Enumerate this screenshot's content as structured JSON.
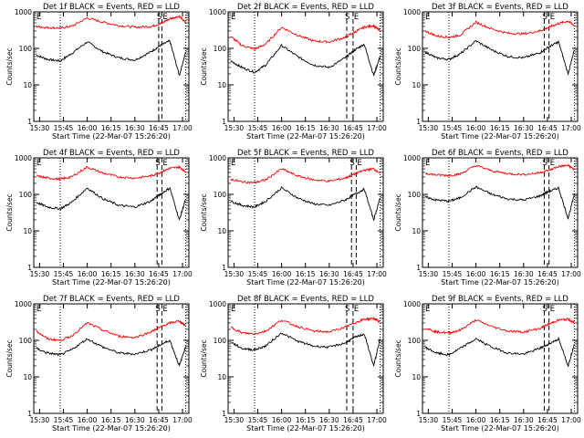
{
  "ylabel": "Counts/sec",
  "xlabel": "Start Time (22-Mar-07 15:26:20)",
  "x_ticks": [
    "15:30",
    "15:45",
    "16:00",
    "16:15",
    "16:30",
    "16:45",
    "17:00"
  ],
  "y_ticks": [
    "1",
    "10",
    "100",
    "1000"
  ],
  "markers": [
    "E",
    "S",
    "E"
  ],
  "colors": {
    "events": "#000000",
    "lld": "#ff0000",
    "axis": "#000000"
  },
  "chart_data": [
    {
      "type": "line",
      "title": "Det 1f BLACK = Events, RED = LLD",
      "yscale": "log",
      "ylim": [
        1,
        1000
      ],
      "xlim": [
        "15:26:20",
        "17:04"
      ],
      "series": [
        {
          "name": "Events",
          "x": [
            "15:28",
            "15:35",
            "15:43",
            "15:50",
            "16:00",
            "16:10",
            "16:20",
            "16:30",
            "16:40",
            "16:46",
            "16:52",
            "16:58",
            "17:02"
          ],
          "values": [
            65,
            50,
            45,
            72,
            150,
            80,
            55,
            48,
            80,
            120,
            160,
            18,
            80
          ]
        },
        {
          "name": "LLD",
          "x": [
            "15:28",
            "15:35",
            "15:43",
            "15:50",
            "16:00",
            "16:10",
            "16:20",
            "16:30",
            "16:40",
            "16:46",
            "16:52",
            "16:58",
            "17:02"
          ],
          "values": [
            400,
            370,
            360,
            400,
            680,
            520,
            420,
            380,
            400,
            470,
            650,
            760,
            500
          ]
        }
      ],
      "vlines_dotted": [
        "15:43",
        "17:02"
      ],
      "vlines_dashed": [
        "16:45",
        "16:47"
      ]
    },
    {
      "type": "line",
      "title": "Det 2f BLACK = Events, RED = LLD",
      "yscale": "log",
      "ylim": [
        1,
        1000
      ],
      "xlim": [
        "15:26:20",
        "17:04"
      ],
      "series": [
        {
          "name": "Events",
          "x": [
            "15:28",
            "15:35",
            "15:43",
            "15:50",
            "16:00",
            "16:10",
            "16:20",
            "16:30",
            "16:40",
            "16:46",
            "16:52",
            "16:58",
            "17:02"
          ],
          "values": [
            45,
            30,
            22,
            35,
            120,
            60,
            35,
            30,
            55,
            90,
            130,
            18,
            60
          ]
        },
        {
          "name": "LLD",
          "x": [
            "15:28",
            "15:35",
            "15:43",
            "15:50",
            "16:00",
            "16:10",
            "16:20",
            "16:30",
            "16:40",
            "16:46",
            "16:52",
            "16:58",
            "17:02"
          ],
          "values": [
            210,
            120,
            95,
            130,
            380,
            230,
            160,
            150,
            200,
            280,
            380,
            420,
            300
          ]
        }
      ],
      "vlines_dotted": [
        "15:43",
        "17:02"
      ],
      "vlines_dashed": [
        "16:41",
        "16:45"
      ]
    },
    {
      "type": "line",
      "title": "Det 3f BLACK = Events, RED = LLD",
      "yscale": "log",
      "ylim": [
        1,
        1000
      ],
      "xlim": [
        "15:26:20",
        "17:04"
      ],
      "series": [
        {
          "name": "Events",
          "x": [
            "15:28",
            "15:35",
            "15:43",
            "15:50",
            "16:00",
            "16:10",
            "16:20",
            "16:30",
            "16:40",
            "16:46",
            "16:52",
            "16:58",
            "17:02"
          ],
          "values": [
            80,
            55,
            50,
            70,
            160,
            90,
            60,
            55,
            75,
            110,
            150,
            20,
            90
          ]
        },
        {
          "name": "LLD",
          "x": [
            "15:28",
            "15:35",
            "15:43",
            "15:50",
            "16:00",
            "16:10",
            "16:20",
            "16:30",
            "16:40",
            "16:46",
            "16:52",
            "16:58",
            "17:02"
          ],
          "values": [
            300,
            220,
            200,
            230,
            520,
            340,
            260,
            250,
            300,
            380,
            480,
            560,
            420
          ]
        }
      ],
      "vlines_dotted": [
        "15:43",
        "17:02"
      ],
      "vlines_dashed": [
        "16:43",
        "16:46"
      ]
    },
    {
      "type": "line",
      "title": "Det 4f BLACK = Events, RED = LLD",
      "yscale": "log",
      "ylim": [
        1,
        1000
      ],
      "xlim": [
        "15:26:20",
        "17:04"
      ],
      "series": [
        {
          "name": "Events",
          "x": [
            "15:28",
            "15:35",
            "15:43",
            "15:50",
            "16:00",
            "16:10",
            "16:20",
            "16:30",
            "16:40",
            "16:46",
            "16:52",
            "16:58",
            "17:02"
          ],
          "values": [
            60,
            45,
            40,
            60,
            150,
            75,
            50,
            45,
            65,
            100,
            150,
            20,
            75
          ]
        },
        {
          "name": "LLD",
          "x": [
            "15:28",
            "15:35",
            "15:43",
            "15:50",
            "16:00",
            "16:10",
            "16:20",
            "16:30",
            "16:40",
            "16:46",
            "16:52",
            "16:58",
            "17:02"
          ],
          "values": [
            320,
            280,
            260,
            300,
            560,
            380,
            300,
            280,
            320,
            400,
            520,
            560,
            420
          ]
        }
      ],
      "vlines_dotted": [
        "15:43",
        "17:02"
      ],
      "vlines_dashed": [
        "16:44",
        "16:47"
      ]
    },
    {
      "type": "line",
      "title": "Det 5f BLACK = Events, RED = LLD",
      "yscale": "log",
      "ylim": [
        1,
        1000
      ],
      "xlim": [
        "15:26:20",
        "17:04"
      ],
      "series": [
        {
          "name": "Events",
          "x": [
            "15:28",
            "15:35",
            "15:43",
            "15:50",
            "16:00",
            "16:10",
            "16:20",
            "16:30",
            "16:40",
            "16:46",
            "16:52",
            "16:58",
            "17:02"
          ],
          "values": [
            65,
            50,
            45,
            65,
            150,
            80,
            55,
            50,
            70,
            100,
            140,
            20,
            80
          ]
        },
        {
          "name": "LLD",
          "x": [
            "15:28",
            "15:35",
            "15:43",
            "15:50",
            "16:00",
            "16:10",
            "16:20",
            "16:30",
            "16:40",
            "16:46",
            "16:52",
            "16:58",
            "17:02"
          ],
          "values": [
            260,
            220,
            210,
            250,
            500,
            320,
            250,
            230,
            280,
            360,
            460,
            500,
            380
          ]
        }
      ],
      "vlines_dotted": [
        "15:43",
        "17:02"
      ],
      "vlines_dashed": [
        "16:44",
        "16:47"
      ]
    },
    {
      "type": "line",
      "title": "Det 6f BLACK = Events, RED = LLD",
      "yscale": "log",
      "ylim": [
        1,
        1000
      ],
      "xlim": [
        "15:26:20",
        "17:04"
      ],
      "series": [
        {
          "name": "Events",
          "x": [
            "15:28",
            "15:35",
            "15:43",
            "15:50",
            "16:00",
            "16:10",
            "16:20",
            "16:30",
            "16:40",
            "16:46",
            "16:52",
            "16:58",
            "17:02"
          ],
          "values": [
            85,
            70,
            65,
            80,
            160,
            100,
            75,
            70,
            90,
            120,
            150,
            22,
            100
          ]
        },
        {
          "name": "LLD",
          "x": [
            "15:28",
            "15:35",
            "15:43",
            "15:50",
            "16:00",
            "16:10",
            "16:20",
            "16:30",
            "16:40",
            "16:46",
            "16:52",
            "16:58",
            "17:02"
          ],
          "values": [
            380,
            340,
            330,
            360,
            620,
            440,
            370,
            350,
            390,
            460,
            580,
            620,
            480
          ]
        }
      ],
      "vlines_dotted": [
        "15:43",
        "17:02"
      ],
      "vlines_dashed": [
        "16:43",
        "16:46"
      ]
    },
    {
      "type": "line",
      "title": "Det 7f BLACK = Events, RED = LLD",
      "yscale": "log",
      "ylim": [
        1,
        1000
      ],
      "xlim": [
        "15:26:20",
        "17:04"
      ],
      "series": [
        {
          "name": "Events",
          "x": [
            "15:28",
            "15:35",
            "15:43",
            "15:50",
            "16:00",
            "16:10",
            "16:20",
            "16:30",
            "16:40",
            "16:46",
            "16:52",
            "16:58",
            "17:02"
          ],
          "values": [
            60,
            45,
            40,
            55,
            110,
            65,
            45,
            42,
            55,
            75,
            100,
            20,
            70
          ]
        },
        {
          "name": "LLD",
          "x": [
            "15:28",
            "15:35",
            "15:43",
            "15:50",
            "16:00",
            "16:10",
            "16:20",
            "16:30",
            "16:40",
            "16:46",
            "16:52",
            "16:58",
            "17:02"
          ],
          "values": [
            180,
            110,
            100,
            130,
            300,
            190,
            130,
            120,
            170,
            230,
            300,
            340,
            250
          ]
        }
      ],
      "vlines_dotted": [
        "15:43",
        "17:02"
      ],
      "vlines_dashed": [
        "16:44",
        "16:47"
      ]
    },
    {
      "type": "line",
      "title": "Det 8f BLACK = Events, RED = LLD",
      "yscale": "log",
      "ylim": [
        1,
        1000
      ],
      "xlim": [
        "15:26:20",
        "17:04"
      ],
      "series": [
        {
          "name": "Events",
          "x": [
            "15:28",
            "15:35",
            "15:43",
            "15:50",
            "16:00",
            "16:10",
            "16:20",
            "16:30",
            "16:40",
            "16:46",
            "16:52",
            "16:58",
            "17:02"
          ],
          "values": [
            90,
            60,
            55,
            70,
            160,
            95,
            70,
            65,
            85,
            120,
            150,
            20,
            110
          ]
        },
        {
          "name": "LLD",
          "x": [
            "15:28",
            "15:35",
            "15:43",
            "15:50",
            "16:00",
            "16:10",
            "16:20",
            "16:30",
            "16:40",
            "16:46",
            "16:52",
            "16:58",
            "17:02"
          ],
          "values": [
            230,
            160,
            150,
            180,
            360,
            240,
            180,
            170,
            230,
            300,
            380,
            400,
            320
          ]
        }
      ],
      "vlines_dotted": [
        "15:43",
        "17:02"
      ],
      "vlines_dashed": [
        "16:41",
        "16:45"
      ]
    },
    {
      "type": "line",
      "title": "Det 9f BLACK = Events, RED = LLD",
      "yscale": "log",
      "ylim": [
        1,
        1000
      ],
      "xlim": [
        "15:26:20",
        "17:04"
      ],
      "series": [
        {
          "name": "Events",
          "x": [
            "15:28",
            "15:35",
            "15:43",
            "15:50",
            "16:00",
            "16:10",
            "16:20",
            "16:30",
            "16:40",
            "16:46",
            "16:52",
            "16:58",
            "17:02"
          ],
          "values": [
            65,
            45,
            40,
            60,
            110,
            65,
            45,
            42,
            60,
            80,
            110,
            20,
            80
          ]
        },
        {
          "name": "LLD",
          "x": [
            "15:28",
            "15:35",
            "15:43",
            "15:50",
            "16:00",
            "16:10",
            "16:20",
            "16:30",
            "16:40",
            "16:46",
            "16:52",
            "16:58",
            "17:02"
          ],
          "values": [
            220,
            170,
            160,
            190,
            360,
            240,
            180,
            170,
            210,
            280,
            360,
            380,
            300
          ]
        }
      ],
      "vlines_dotted": [
        "15:43",
        "17:02"
      ],
      "vlines_dashed": [
        "16:43",
        "16:46"
      ]
    }
  ]
}
